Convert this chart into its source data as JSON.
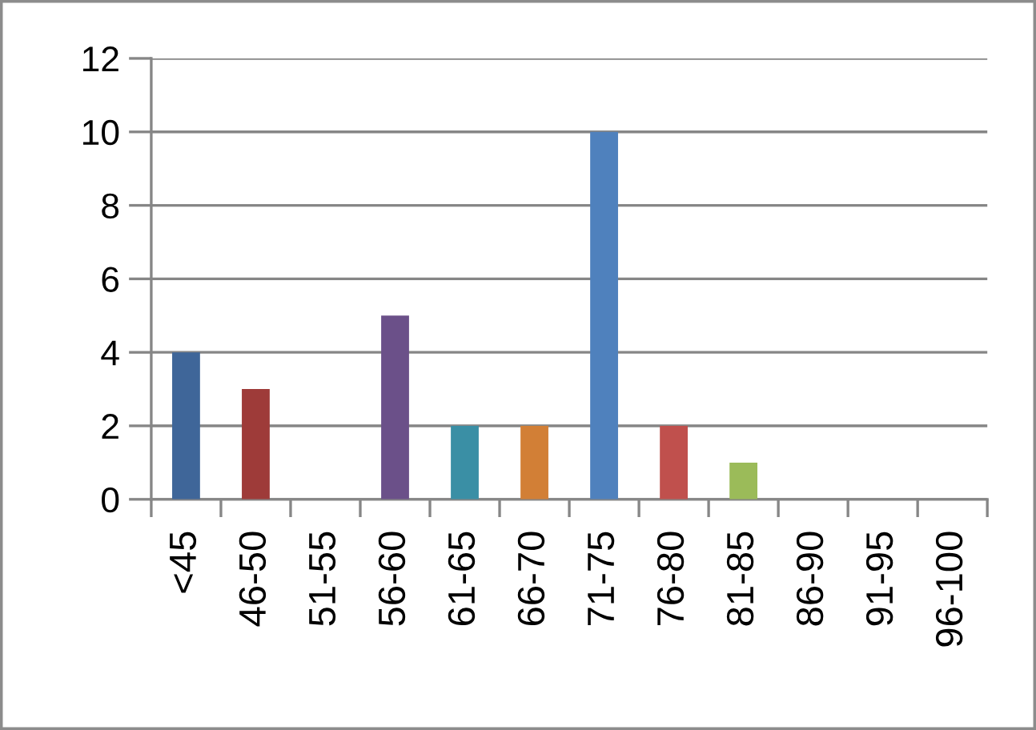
{
  "chart_data": {
    "type": "bar",
    "categories": [
      "<45",
      "46-50",
      "51-55",
      "56-60",
      "61-65",
      "66-70",
      "71-75",
      "76-80",
      "81-85",
      "86-90",
      "91-95",
      "96-100"
    ],
    "values": [
      4,
      3,
      0,
      5,
      2,
      2,
      10,
      2,
      1,
      0,
      0,
      0
    ],
    "colors": [
      "#3f6699",
      "#9e3b39",
      "#7d9a47",
      "#6b5089",
      "#3a8fa5",
      "#d27f36",
      "#4f81bd",
      "#c0504d",
      "#9bbb59",
      "#8064a2",
      "#4bacc6",
      "#f79646"
    ],
    "ylim": [
      0,
      12
    ],
    "yticks": [
      0,
      2,
      4,
      6,
      8,
      10,
      12
    ],
    "grid": "y"
  }
}
